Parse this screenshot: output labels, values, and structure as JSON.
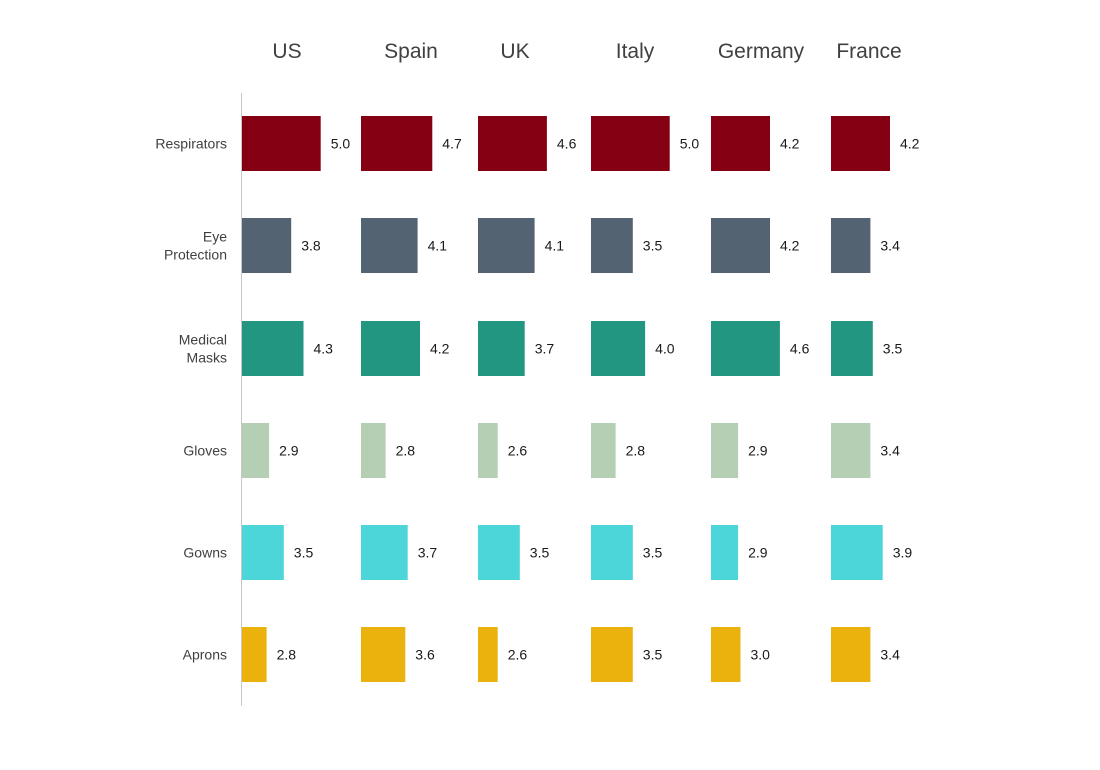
{
  "chart_data": {
    "type": "bar",
    "orientation": "horizontal",
    "layout": "small-multiples",
    "categories": [
      "Respirators",
      "Eye Protection",
      "Medical Masks",
      "Gloves",
      "Gowns",
      "Aprons"
    ],
    "category_labels": [
      [
        "Respirators"
      ],
      [
        "Eye",
        "Protection"
      ],
      [
        "Medical",
        "Masks"
      ],
      [
        "Gloves"
      ],
      [
        "Gowns"
      ],
      [
        "Aprons"
      ]
    ],
    "category_colors": [
      "#850012",
      "#546372",
      "#229680",
      "#b5cfb4",
      "#4dd6d9",
      "#ebb20d"
    ],
    "series": [
      {
        "name": "US",
        "values": [
          5.0,
          3.8,
          4.3,
          2.9,
          3.5,
          2.8
        ]
      },
      {
        "name": "Spain",
        "values": [
          4.7,
          4.1,
          4.2,
          2.8,
          3.7,
          3.6
        ]
      },
      {
        "name": "UK",
        "values": [
          4.6,
          4.1,
          3.7,
          2.6,
          3.5,
          2.6
        ]
      },
      {
        "name": "Italy",
        "values": [
          5.0,
          3.5,
          4.0,
          2.8,
          3.5,
          3.5
        ]
      },
      {
        "name": "Germany",
        "values": [
          4.2,
          4.2,
          4.6,
          2.9,
          2.9,
          3.0
        ]
      },
      {
        "name": "France",
        "values": [
          4.2,
          3.4,
          3.5,
          3.4,
          3.9,
          3.4
        ]
      }
    ],
    "xlim": [
      1.8,
      5.0
    ],
    "value_decimals": 1,
    "title": "",
    "xlabel": "",
    "ylabel": "",
    "grid": false,
    "legend": "none"
  }
}
